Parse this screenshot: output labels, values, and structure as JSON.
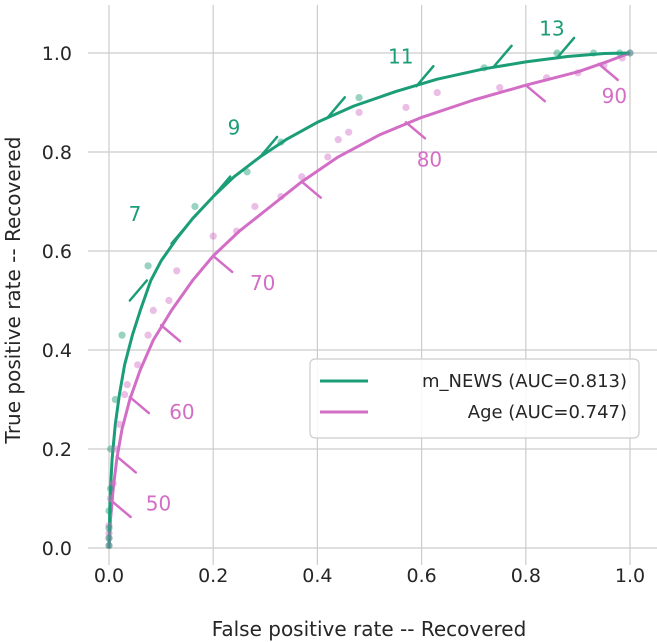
{
  "chart_data": {
    "type": "line",
    "xlabel": "False positive rate -- Recovered",
    "ylabel": "True positive rate -- Recovered",
    "xlim": [
      -0.02,
      1.04
    ],
    "ylim": [
      -0.02,
      1.09
    ],
    "xticks": [
      "0.0",
      "0.2",
      "0.4",
      "0.6",
      "0.8",
      "1.0"
    ],
    "yticks": [
      "0.0",
      "0.2",
      "0.4",
      "0.6",
      "0.8",
      "1.0"
    ],
    "grid": true,
    "legend_position": "lower-right",
    "colors": {
      "news": "#1b9e77",
      "age": "#d36ec6"
    },
    "series": [
      {
        "name": "m_NEWS (AUC=0.813)",
        "key": "news",
        "curve": [
          [
            0,
            0
          ],
          [
            0.002,
            0.1
          ],
          [
            0.006,
            0.18
          ],
          [
            0.012,
            0.25
          ],
          [
            0.02,
            0.31
          ],
          [
            0.03,
            0.37
          ],
          [
            0.045,
            0.43
          ],
          [
            0.06,
            0.48
          ],
          [
            0.08,
            0.54
          ],
          [
            0.1,
            0.58
          ],
          [
            0.13,
            0.625
          ],
          [
            0.16,
            0.665
          ],
          [
            0.2,
            0.71
          ],
          [
            0.24,
            0.75
          ],
          [
            0.29,
            0.79
          ],
          [
            0.34,
            0.825
          ],
          [
            0.4,
            0.86
          ],
          [
            0.47,
            0.893
          ],
          [
            0.55,
            0.922
          ],
          [
            0.63,
            0.947
          ],
          [
            0.72,
            0.968
          ],
          [
            0.8,
            0.982
          ],
          [
            0.88,
            0.993
          ],
          [
            0.95,
            0.999
          ],
          [
            1.0,
            1.0
          ]
        ],
        "points": [
          [
            0,
            0.005
          ],
          [
            0,
            0.02
          ],
          [
            0,
            0.04
          ],
          [
            0,
            0.075
          ],
          [
            0.003,
            0.12
          ],
          [
            0.003,
            0.2
          ],
          [
            0.012,
            0.3
          ],
          [
            0.025,
            0.43
          ],
          [
            0.075,
            0.57
          ],
          [
            0.165,
            0.69
          ],
          [
            0.265,
            0.76
          ],
          [
            0.33,
            0.82
          ],
          [
            0.48,
            0.91
          ],
          [
            0.72,
            0.97
          ],
          [
            0.86,
            1.0
          ],
          [
            0.93,
            1.0
          ],
          [
            0.98,
            1.0
          ],
          [
            1.0,
            1.0
          ]
        ],
        "thresholds": [
          {
            "x": 0.04,
            "y": 0.5,
            "label": ""
          },
          {
            "x": 0.12,
            "y": 0.615,
            "label": "7",
            "label_dx": -0.07,
            "label_dy": 0.06
          },
          {
            "x": 0.2,
            "y": 0.71,
            "label": ""
          },
          {
            "x": 0.29,
            "y": 0.79,
            "label": "9",
            "label_dx": -0.05,
            "label_dy": 0.06
          },
          {
            "x": 0.42,
            "y": 0.87,
            "label": ""
          },
          {
            "x": 0.59,
            "y": 0.933,
            "label": "11",
            "label_dx": -0.03,
            "label_dy": 0.06
          },
          {
            "x": 0.74,
            "y": 0.974,
            "label": ""
          },
          {
            "x": 0.86,
            "y": 0.99,
            "label": "13",
            "label_dx": -0.01,
            "label_dy": 0.06
          }
        ]
      },
      {
        "name": "Age (AUC=0.747)",
        "key": "age",
        "curve": [
          [
            0,
            0
          ],
          [
            0.003,
            0.06
          ],
          [
            0.008,
            0.12
          ],
          [
            0.015,
            0.18
          ],
          [
            0.025,
            0.24
          ],
          [
            0.04,
            0.3
          ],
          [
            0.06,
            0.36
          ],
          [
            0.085,
            0.42
          ],
          [
            0.12,
            0.48
          ],
          [
            0.16,
            0.54
          ],
          [
            0.2,
            0.59
          ],
          [
            0.25,
            0.64
          ],
          [
            0.31,
            0.69
          ],
          [
            0.37,
            0.74
          ],
          [
            0.44,
            0.79
          ],
          [
            0.52,
            0.835
          ],
          [
            0.6,
            0.87
          ],
          [
            0.7,
            0.905
          ],
          [
            0.8,
            0.935
          ],
          [
            0.9,
            0.962
          ],
          [
            0.96,
            0.984
          ],
          [
            1.0,
            1.0
          ]
        ],
        "points": [
          [
            0,
            0.005
          ],
          [
            0,
            0.02
          ],
          [
            0,
            0.03
          ],
          [
            0,
            0.045
          ],
          [
            0.003,
            0.1
          ],
          [
            0.008,
            0.13
          ],
          [
            0.012,
            0.2
          ],
          [
            0.02,
            0.25
          ],
          [
            0.03,
            0.31
          ],
          [
            0.035,
            0.33
          ],
          [
            0.055,
            0.37
          ],
          [
            0.075,
            0.43
          ],
          [
            0.085,
            0.48
          ],
          [
            0.115,
            0.5
          ],
          [
            0.13,
            0.56
          ],
          [
            0.2,
            0.63
          ],
          [
            0.245,
            0.64
          ],
          [
            0.28,
            0.69
          ],
          [
            0.33,
            0.71
          ],
          [
            0.37,
            0.75
          ],
          [
            0.42,
            0.79
          ],
          [
            0.44,
            0.825
          ],
          [
            0.46,
            0.84
          ],
          [
            0.48,
            0.88
          ],
          [
            0.57,
            0.89
          ],
          [
            0.63,
            0.92
          ],
          [
            0.75,
            0.93
          ],
          [
            0.84,
            0.95
          ],
          [
            0.9,
            0.96
          ],
          [
            0.95,
            0.975
          ],
          [
            0.985,
            0.99
          ],
          [
            1.0,
            1.0
          ]
        ],
        "thresholds": [
          {
            "x": 0.005,
            "y": 0.095,
            "label": "50",
            "label_dx": 0.09,
            "label_dy": -0.005
          },
          {
            "x": 0.015,
            "y": 0.185,
            "label": ""
          },
          {
            "x": 0.04,
            "y": 0.305,
            "label": "60",
            "label_dx": 0.1,
            "label_dy": -0.03
          },
          {
            "x": 0.1,
            "y": 0.45,
            "label": ""
          },
          {
            "x": 0.2,
            "y": 0.59,
            "label": "70",
            "label_dx": 0.095,
            "label_dy": -0.055
          },
          {
            "x": 0.37,
            "y": 0.74,
            "label": ""
          },
          {
            "x": 0.57,
            "y": 0.86,
            "label": "80",
            "label_dx": 0.045,
            "label_dy": -0.075
          },
          {
            "x": 0.8,
            "y": 0.935,
            "label": ""
          },
          {
            "x": 0.94,
            "y": 0.978,
            "label": "90",
            "label_dx": 0.03,
            "label_dy": -0.065
          }
        ]
      }
    ]
  }
}
